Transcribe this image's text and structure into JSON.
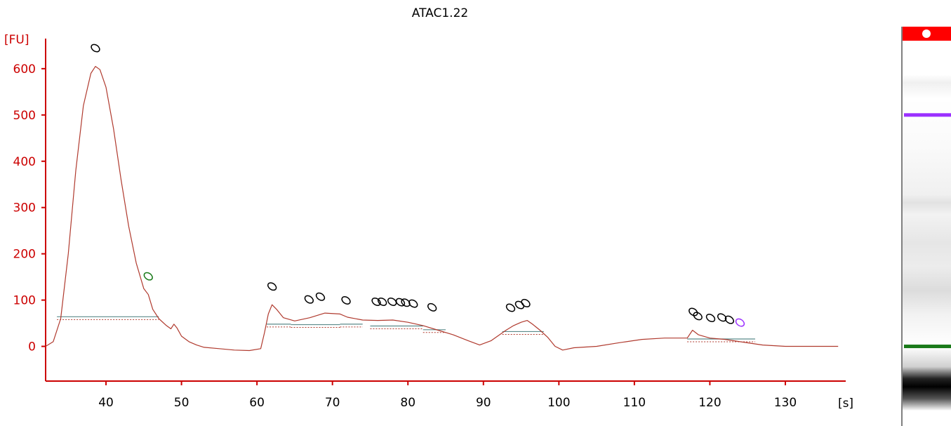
{
  "chart_data": {
    "type": "line",
    "title": "ATAC1.22",
    "ylabel": "[FU]",
    "xlabel": "[s]",
    "xlim": [
      32,
      138
    ],
    "ylim": [
      -75,
      665
    ],
    "x_ticks": [
      40,
      50,
      60,
      70,
      80,
      90,
      100,
      110,
      120,
      130
    ],
    "y_ticks": [
      0,
      100,
      200,
      300,
      400,
      500,
      600
    ],
    "grid": false,
    "colors": {
      "axis": "#cc0000",
      "trace": "#b03a2e",
      "baseline": "#5b8a8a",
      "marker_default": "#000000",
      "marker_lower": "#1a7a1a",
      "marker_upper": "#9b30ff"
    },
    "series": [
      {
        "points": [
          [
            32.0,
            0
          ],
          [
            33.0,
            10
          ],
          [
            34.0,
            60
          ],
          [
            35.0,
            200
          ],
          [
            36.0,
            380
          ],
          [
            37.0,
            520
          ],
          [
            38.0,
            590
          ],
          [
            38.6,
            605
          ],
          [
            39.2,
            598
          ],
          [
            40.0,
            560
          ],
          [
            41.0,
            470
          ],
          [
            42.0,
            360
          ],
          [
            43.0,
            260
          ],
          [
            44.0,
            180
          ],
          [
            45.0,
            125
          ],
          [
            45.6,
            112
          ],
          [
            46.2,
            80
          ],
          [
            47.0,
            60
          ],
          [
            48.0,
            45
          ],
          [
            48.6,
            38
          ],
          [
            49.0,
            48
          ],
          [
            49.4,
            40
          ],
          [
            50.0,
            22
          ],
          [
            51.0,
            10
          ],
          [
            52.0,
            3
          ],
          [
            53.0,
            -2
          ],
          [
            55.0,
            -5
          ],
          [
            57.0,
            -8
          ],
          [
            59.0,
            -9
          ],
          [
            60.5,
            -5
          ],
          [
            61.0,
            30
          ],
          [
            61.5,
            70
          ],
          [
            62.0,
            90
          ],
          [
            62.6,
            80
          ],
          [
            63.5,
            62
          ],
          [
            65.0,
            55
          ],
          [
            67.0,
            62
          ],
          [
            69.0,
            72
          ],
          [
            71.0,
            70
          ],
          [
            72.0,
            63
          ],
          [
            74.0,
            57
          ],
          [
            76.0,
            56
          ],
          [
            78.0,
            57
          ],
          [
            80.0,
            52
          ],
          [
            82.0,
            45
          ],
          [
            84.0,
            35
          ],
          [
            86.0,
            25
          ],
          [
            88.0,
            12
          ],
          [
            89.5,
            3
          ],
          [
            91.0,
            12
          ],
          [
            93.0,
            35
          ],
          [
            94.0,
            45
          ],
          [
            95.0,
            52
          ],
          [
            95.8,
            56
          ],
          [
            96.5,
            48
          ],
          [
            97.5,
            35
          ],
          [
            98.5,
            20
          ],
          [
            99.5,
            0
          ],
          [
            100.5,
            -8
          ],
          [
            102.0,
            -3
          ],
          [
            105.0,
            0
          ],
          [
            108.0,
            8
          ],
          [
            111.0,
            15
          ],
          [
            114.0,
            18
          ],
          [
            117.0,
            18
          ],
          [
            117.7,
            35
          ],
          [
            118.5,
            25
          ],
          [
            120.0,
            18
          ],
          [
            122.0,
            15
          ],
          [
            124.0,
            10
          ],
          [
            127.0,
            3
          ],
          [
            130.0,
            0
          ],
          [
            134.0,
            0
          ],
          [
            137.0,
            0
          ]
        ]
      }
    ],
    "peak_markers": [
      {
        "x": 38.6,
        "y": 605,
        "color": "marker_default"
      },
      {
        "x": 45.6,
        "y": 112,
        "color": "marker_lower"
      },
      {
        "x": 62.0,
        "y": 90,
        "color": "marker_default"
      },
      {
        "x": 66.9,
        "y": 62,
        "color": "marker_default"
      },
      {
        "x": 68.4,
        "y": 68,
        "color": "marker_default"
      },
      {
        "x": 71.8,
        "y": 60,
        "color": "marker_default"
      },
      {
        "x": 75.8,
        "y": 57,
        "color": "marker_default"
      },
      {
        "x": 76.6,
        "y": 57,
        "color": "marker_default"
      },
      {
        "x": 77.9,
        "y": 57,
        "color": "marker_default"
      },
      {
        "x": 79.0,
        "y": 56,
        "color": "marker_default"
      },
      {
        "x": 79.7,
        "y": 55,
        "color": "marker_default"
      },
      {
        "x": 80.7,
        "y": 53,
        "color": "marker_default"
      },
      {
        "x": 83.2,
        "y": 45,
        "color": "marker_default"
      },
      {
        "x": 93.6,
        "y": 44,
        "color": "marker_default"
      },
      {
        "x": 94.8,
        "y": 50,
        "color": "marker_default"
      },
      {
        "x": 95.6,
        "y": 54,
        "color": "marker_default"
      },
      {
        "x": 117.8,
        "y": 35,
        "color": "marker_default"
      },
      {
        "x": 118.4,
        "y": 26,
        "color": "marker_default"
      },
      {
        "x": 120.1,
        "y": 22,
        "color": "marker_default"
      },
      {
        "x": 121.6,
        "y": 23,
        "color": "marker_default"
      },
      {
        "x": 122.6,
        "y": 18,
        "color": "marker_default"
      },
      {
        "x": 124.0,
        "y": 12,
        "color": "marker_upper"
      }
    ],
    "baseline_segments": [
      {
        "x0": 33.5,
        "x1": 47.0,
        "y": 64
      },
      {
        "x0": 61.3,
        "x1": 64.5,
        "y": 48
      },
      {
        "x0": 64.5,
        "x1": 71.0,
        "y": 47
      },
      {
        "x0": 71.0,
        "x1": 74.0,
        "y": 48
      },
      {
        "x0": 75.0,
        "x1": 82.0,
        "y": 44
      },
      {
        "x0": 82.0,
        "x1": 85.0,
        "y": 36
      },
      {
        "x0": 92.5,
        "x1": 98.0,
        "y": 32
      },
      {
        "x0": 117.0,
        "x1": 126.0,
        "y": 16
      }
    ],
    "gel_bands": [
      {
        "y": 500,
        "color": "marker_upper",
        "intensity": 1.0
      },
      {
        "y": 0,
        "color": "marker_lower",
        "intensity": 1.0
      }
    ]
  }
}
